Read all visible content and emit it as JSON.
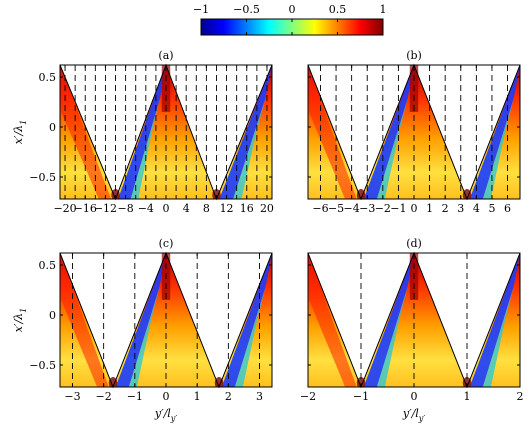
{
  "colorbar": {
    "ticks": [
      "−1",
      "−0.5",
      "0",
      "0.5",
      "1"
    ],
    "range": [
      -1,
      1
    ],
    "colormap": "jet"
  },
  "chart_data": [
    {
      "type": "heatmap",
      "panel": "(a)",
      "xlim": [
        -21,
        21
      ],
      "ylim": [
        -0.72,
        0.62
      ],
      "xticks": [
        -20,
        -16,
        -12,
        -8,
        -4,
        0,
        4,
        8,
        12,
        16,
        20
      ],
      "xtick_labels": [
        "−20",
        "−16",
        "−12",
        "−8",
        "−4",
        "0",
        "4",
        "8",
        "12",
        "16",
        "20"
      ],
      "yticks": [
        0.5,
        0,
        -0.5
      ],
      "ytick_labels": [
        "0.5",
        "0",
        "−0.5"
      ],
      "ylabel": "x′/λ",
      "ylabel_sub": "1",
      "xlabel": "",
      "apexes": [
        -21,
        0,
        21
      ],
      "valleys": [
        -10,
        10
      ],
      "dashed_lines": [
        -20,
        -18,
        -16,
        -14,
        -12,
        -10,
        -8,
        -6,
        -4,
        -2,
        0,
        2,
        4,
        6,
        8,
        10,
        12,
        14,
        16,
        18,
        20
      ]
    },
    {
      "type": "heatmap",
      "panel": "(b)",
      "xlim": [
        -6.8,
        6.8
      ],
      "ylim": [
        -0.72,
        0.62
      ],
      "xticks": [
        -6,
        -5,
        -4,
        -3,
        -2,
        -1,
        0,
        1,
        2,
        3,
        4,
        5,
        6
      ],
      "xtick_labels": [
        "−6",
        "−5",
        "−4",
        "−3",
        "−2",
        "−1",
        "0",
        "1",
        "2",
        "3",
        "4",
        "5",
        "6"
      ],
      "yticks": [
        0.5,
        0,
        -0.5
      ],
      "ytick_labels": [
        "",
        "",
        ""
      ],
      "ylabel": "",
      "ylabel_sub": "",
      "xlabel": "",
      "apexes": [
        -6.8,
        0,
        6.8
      ],
      "valleys": [
        -3.4,
        3.4
      ],
      "dashed_lines": [
        -6,
        -5,
        -4,
        -3,
        -2,
        -1,
        0,
        1,
        2,
        3,
        4,
        5,
        6
      ]
    },
    {
      "type": "heatmap",
      "panel": "(c)",
      "xlim": [
        -3.4,
        3.4
      ],
      "ylim": [
        -0.72,
        0.62
      ],
      "xticks": [
        -3,
        -2,
        -1,
        0,
        1,
        2,
        3
      ],
      "xtick_labels": [
        "−3",
        "−2",
        "−1",
        "0",
        "1",
        "2",
        "3"
      ],
      "yticks": [
        0.5,
        0,
        -0.5
      ],
      "ytick_labels": [
        "0.5",
        "0",
        "−0.5"
      ],
      "ylabel": "x′/λ",
      "ylabel_sub": "1",
      "xlabel": "y′/l",
      "xlabel_sub": "y′",
      "apexes": [
        -3.4,
        0,
        3.4
      ],
      "valleys": [
        -1.7,
        1.7
      ],
      "dashed_lines": [
        -3,
        -2,
        -1,
        0,
        1,
        2,
        3
      ]
    },
    {
      "type": "heatmap",
      "panel": "(d)",
      "xlim": [
        -2,
        2
      ],
      "ylim": [
        -0.72,
        0.62
      ],
      "xticks": [
        -2,
        -1,
        0,
        1,
        2
      ],
      "xtick_labels": [
        "−2",
        "−1",
        "0",
        "1",
        "2"
      ],
      "yticks": [
        0.5,
        0,
        -0.5
      ],
      "ytick_labels": [
        "",
        "",
        ""
      ],
      "ylabel": "",
      "ylabel_sub": "",
      "xlabel": "y′/l",
      "xlabel_sub": "y′",
      "apexes": [
        -2,
        0,
        2
      ],
      "valleys": [
        -1,
        1
      ],
      "dashed_lines": [
        -1,
        0,
        1
      ]
    }
  ]
}
